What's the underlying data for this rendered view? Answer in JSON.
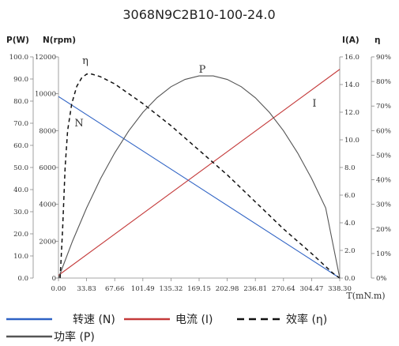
{
  "chart_data": {
    "type": "line",
    "title": "3068N9C2B10-100-24.0",
    "axes": {
      "x": {
        "label": "T(mN.m)",
        "min": 0,
        "max": 338.3,
        "ticks": [
          "0.00",
          "33.83",
          "67.66",
          "101.49",
          "135.32",
          "169.15",
          "202.98",
          "236.81",
          "270.64",
          "304.47",
          "338.30"
        ]
      },
      "y_power": {
        "label": "P(W)",
        "min": 0,
        "max": 100,
        "ticks": [
          "0.0",
          "10.0",
          "20.0",
          "30.0",
          "40.0",
          "50.0",
          "60.0",
          "70.0",
          "80.0",
          "90.0",
          "100.0"
        ]
      },
      "y_speed": {
        "label": "N(rpm)",
        "min": 0,
        "max": 12000,
        "ticks": [
          "0",
          "2000",
          "4000",
          "6000",
          "8000",
          "10000",
          "12000"
        ]
      },
      "y_current": {
        "label": "I(A)",
        "min": 0,
        "max": 16,
        "ticks": [
          "0.0",
          "2.0",
          "4.0",
          "6.0",
          "8.0",
          "10.0",
          "12.0",
          "14.0",
          "16.0"
        ]
      },
      "y_efficiency": {
        "label": "η",
        "min": 0,
        "max": 90,
        "ticks": [
          "0%",
          "10%",
          "20%",
          "30%",
          "40%",
          "50%",
          "60%",
          "70%",
          "80%",
          "90%"
        ]
      }
    },
    "series": [
      {
        "name": "转速 (N)",
        "curve_label": "N",
        "axis": "y_speed",
        "color": "#2e62c4",
        "style": "solid",
        "points": [
          [
            0,
            9850
          ],
          [
            338.3,
            0
          ]
        ]
      },
      {
        "name": "电流 (I)",
        "curve_label": "I",
        "axis": "y_current",
        "color": "#c43a3a",
        "style": "solid",
        "points": [
          [
            0,
            0.2
          ],
          [
            338.3,
            15.1
          ]
        ]
      },
      {
        "name": "效率 (η)",
        "curve_label": "η",
        "axis": "y_efficiency",
        "color": "#111111",
        "style": "dashed",
        "points": [
          [
            2,
            0
          ],
          [
            5,
            20
          ],
          [
            8,
            45
          ],
          [
            11,
            60
          ],
          [
            16,
            71
          ],
          [
            22,
            78
          ],
          [
            28,
            81.5
          ],
          [
            34,
            83
          ],
          [
            40,
            83
          ],
          [
            50,
            82
          ],
          [
            67.66,
            79
          ],
          [
            101.49,
            71
          ],
          [
            135.32,
            62
          ],
          [
            169.15,
            52
          ],
          [
            202.98,
            42
          ],
          [
            236.81,
            31
          ],
          [
            270.64,
            20
          ],
          [
            304.47,
            10
          ],
          [
            330,
            2
          ],
          [
            338.3,
            0
          ]
        ]
      },
      {
        "name": "功率 (P)",
        "curve_label": "P",
        "axis": "y_power",
        "color": "#555555",
        "style": "solid",
        "points": [
          [
            0,
            0
          ],
          [
            16.9,
            16.7
          ],
          [
            33.83,
            31.7
          ],
          [
            50.7,
            45.0
          ],
          [
            67.66,
            56.6
          ],
          [
            84.6,
            66.6
          ],
          [
            101.49,
            74.9
          ],
          [
            118.4,
            81.5
          ],
          [
            135.32,
            86.5
          ],
          [
            152.2,
            89.8
          ],
          [
            169.15,
            91.4
          ],
          [
            186.1,
            91.4
          ],
          [
            202.98,
            89.8
          ],
          [
            219.9,
            86.5
          ],
          [
            236.81,
            81.5
          ],
          [
            253.7,
            74.9
          ],
          [
            270.64,
            66.6
          ],
          [
            287.6,
            56.6
          ],
          [
            304.47,
            45.0
          ],
          [
            321.4,
            31.7
          ],
          [
            338.3,
            0
          ]
        ]
      }
    ],
    "legend": {
      "placement": "bottom",
      "items": [
        "转速 (N)",
        "电流 (I)",
        "效率 (η)",
        "功率 (P)"
      ]
    },
    "colors": {
      "speed": "#2e62c4",
      "current": "#c43a3a",
      "efficiency": "#111111",
      "power": "#555555",
      "axis": "#888888"
    }
  }
}
